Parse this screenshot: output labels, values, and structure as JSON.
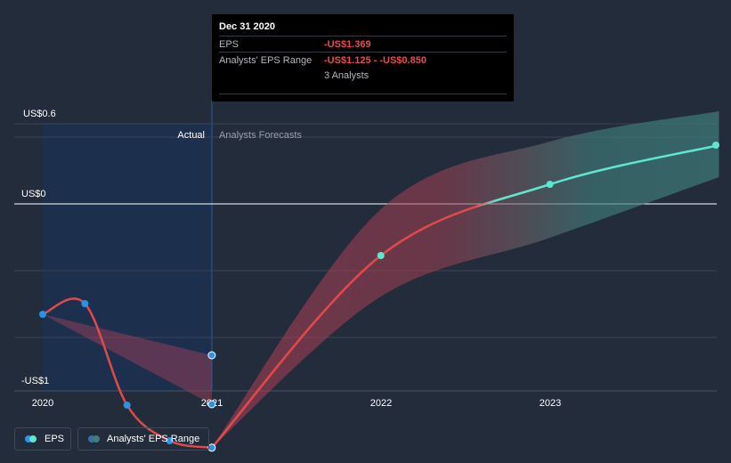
{
  "chart_data": {
    "type": "line",
    "y_axis_labels": [
      "US$0.6",
      "US$0",
      "-US$1"
    ],
    "x_tick_labels": [
      "2020",
      "2021",
      "2022",
      "2023"
    ],
    "ylim": [
      -1.4,
      0.6
    ],
    "section_labels": {
      "actual": "Actual",
      "forecast": "Analysts Forecasts"
    },
    "series": [
      {
        "name": "EPS",
        "points": [
          {
            "x": "2020-01-01",
            "y": -0.62
          },
          {
            "x": "2020-04-01",
            "y": -0.56
          },
          {
            "x": "2020-07-01",
            "y": -1.13
          },
          {
            "x": "2020-10-01",
            "y": -1.33
          },
          {
            "x": "2020-12-31",
            "y": -1.369
          }
        ]
      },
      {
        "name": "EPS forecast",
        "points": [
          {
            "x": "2020-12-31",
            "y": -1.369
          },
          {
            "x": "2021-12-31",
            "y": -0.29
          },
          {
            "x": "2022-12-31",
            "y": 0.11
          },
          {
            "x": "2023-12-31",
            "y": 0.33
          }
        ]
      },
      {
        "name": "Analysts' EPS Range",
        "low": [
          {
            "x": "2020-01-01",
            "y": -0.62
          },
          {
            "x": "2020-12-31",
            "y": -1.125
          },
          {
            "x": "2021-12-31",
            "y": -0.52
          },
          {
            "x": "2022-12-31",
            "y": -0.19
          },
          {
            "x": "2023-12-31",
            "y": 0.15
          }
        ],
        "high": [
          {
            "x": "2020-01-01",
            "y": -0.62
          },
          {
            "x": "2020-12-31",
            "y": -0.85
          },
          {
            "x": "2021-12-31",
            "y": -0.03
          },
          {
            "x": "2022-12-31",
            "y": 0.35
          },
          {
            "x": "2023-12-31",
            "y": 0.52
          }
        ]
      }
    ],
    "highlight_points": [
      {
        "x": "2020-12-31",
        "y": -0.85
      },
      {
        "x": "2020-12-31",
        "y": -1.125
      }
    ]
  },
  "tooltip": {
    "title": "Dec 31 2020",
    "eps_label": "EPS",
    "eps_value": "-US$1.369",
    "range_label": "Analysts' EPS Range",
    "range_value": "-US$1.125 - -US$0.850",
    "analysts": "3 Analysts"
  },
  "legend": {
    "eps": "EPS",
    "range": "Analysts' EPS Range"
  },
  "colors": {
    "background": "#232c3b",
    "actual_line": "#e04a4a",
    "forecast_line": "#5ee6d0",
    "point_blue": "#2b93e6",
    "actual_shade": "#1b3152"
  }
}
